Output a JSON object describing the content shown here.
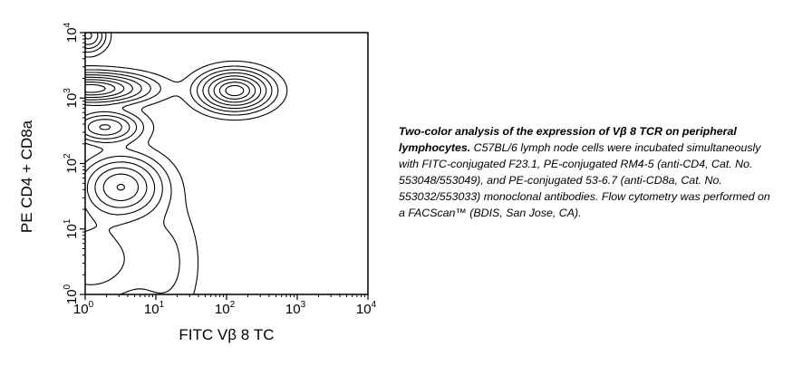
{
  "chart_data": {
    "type": "contour",
    "xlabel": "FITC  Vβ 8 TC",
    "ylabel": "PE CD4 + CD8a",
    "xscale": "log",
    "yscale": "log",
    "xlim": [
      1,
      10000
    ],
    "ylim": [
      1,
      10000
    ],
    "x_ticks": [
      {
        "base": "10",
        "exp": "0",
        "value": 1
      },
      {
        "base": "10",
        "exp": "1",
        "value": 10
      },
      {
        "base": "10",
        "exp": "2",
        "value": 100
      },
      {
        "base": "10",
        "exp": "3",
        "value": 1000
      },
      {
        "base": "10",
        "exp": "4",
        "value": 10000
      }
    ],
    "y_ticks": [
      {
        "base": "10",
        "exp": "0",
        "value": 1
      },
      {
        "base": "10",
        "exp": "1",
        "value": 10
      },
      {
        "base": "10",
        "exp": "2",
        "value": 100
      },
      {
        "base": "10",
        "exp": "3",
        "value": 1000
      },
      {
        "base": "10",
        "exp": "4",
        "value": 10000
      }
    ],
    "populations": [
      {
        "x": 130,
        "y": 1300,
        "spread_x": 0.28,
        "spread_y": 0.17,
        "weight": 1.0
      },
      {
        "x": 1.2,
        "y": 1400,
        "spread_x": 0.45,
        "spread_y": 0.13,
        "weight": 1.0
      },
      {
        "x": 3.2,
        "y": 44,
        "spread_x": 0.33,
        "spread_y": 0.27,
        "weight": 0.75
      },
      {
        "x": 1.9,
        "y": 360,
        "spread_x": 0.28,
        "spread_y": 0.14,
        "weight": 0.6
      },
      {
        "x": 1.1,
        "y": 9000,
        "spread_x": 0.14,
        "spread_y": 0.14,
        "weight": 0.45
      },
      {
        "x": 1.2,
        "y": 3.5,
        "spread_x": 0.5,
        "spread_y": 0.45,
        "weight": 0.25
      },
      {
        "x": 14,
        "y": 3,
        "spread_x": 0.28,
        "spread_y": 0.6,
        "weight": 0.1
      }
    ],
    "contour_levels": [
      0.03,
      0.09,
      0.17,
      0.28,
      0.42,
      0.58,
      0.75,
      0.9
    ]
  },
  "caption": {
    "title": "Two-color analysis of the expression of Vβ 8 TCR on peripheral lymphocytes.",
    "body": "C57BL/6 lymph node cells were incubated simultaneously with FITC-conjugated F23.1, PE-conjugated RM4-5 (anti-CD4, Cat. No. 553048/553049), and PE-conjugated 53-6.7 (anti-CD8a, Cat. No. 553032/553033) monoclonal antibodies. Flow cytometry was performed on a FACScan™ (BDIS, San Jose, CA)."
  }
}
